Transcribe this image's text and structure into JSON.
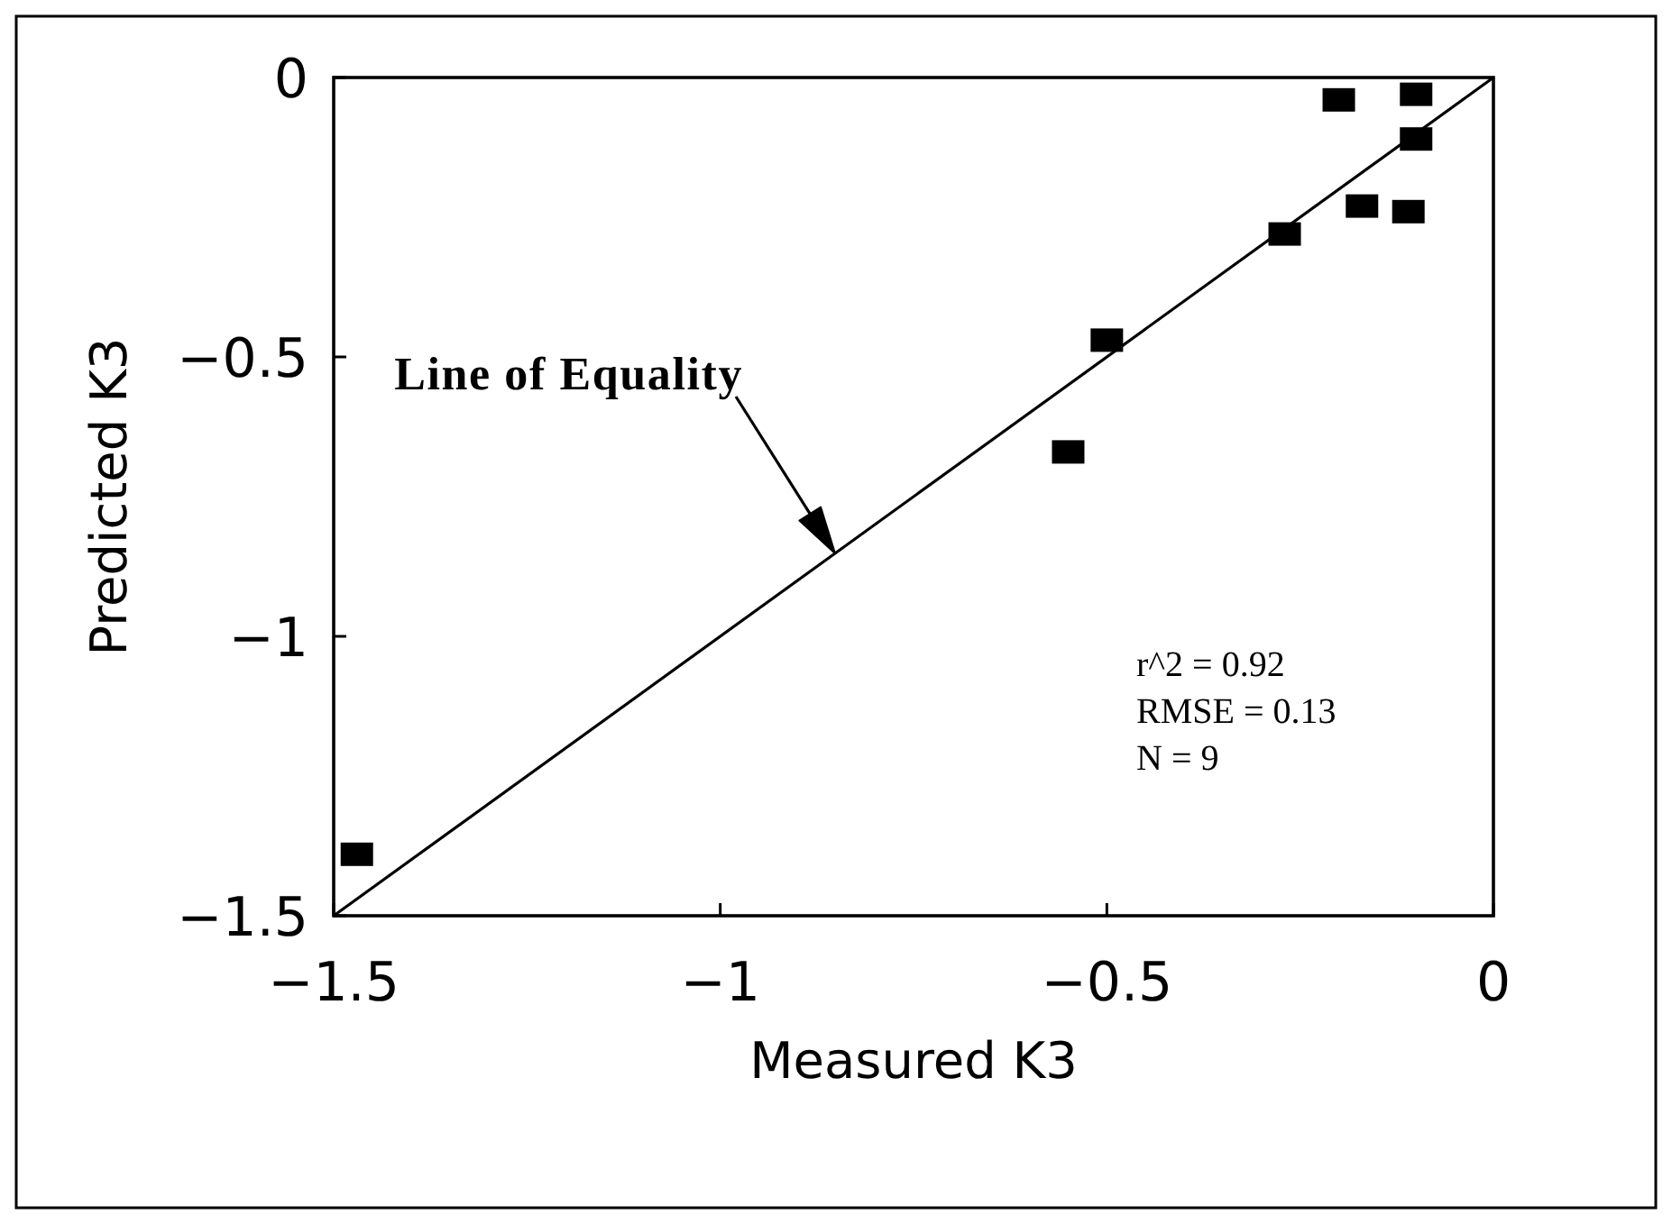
{
  "chart_data": {
    "type": "scatter",
    "xlabel": "Measured K3",
    "ylabel": "Predicted K3",
    "xlim": [
      -1.5,
      0
    ],
    "ylim": [
      -1.5,
      0
    ],
    "xticks": [
      -1.5,
      -1,
      -0.5,
      0
    ],
    "yticks": [
      -1.5,
      -1,
      -0.5,
      0
    ],
    "marker": "square",
    "series": [
      {
        "color": "#000000",
        "x": [
          -1.47,
          -0.55,
          -0.5,
          -0.27,
          -0.2,
          -0.17,
          -0.11,
          -0.1,
          -0.1
        ],
        "values": [
          -1.39,
          -0.67,
          -0.47,
          -0.28,
          -0.04,
          -0.23,
          -0.24,
          -0.03,
          -0.11
        ]
      },
      {
        "type": "line",
        "color": "#000000",
        "marker": "none",
        "line_style": "solid",
        "x": [
          -1.5,
          0
        ],
        "values": [
          -1.5,
          0
        ]
      }
    ],
    "annotations": [
      "Line of Equality",
      "r^2 = 0.92",
      "RMSE = 0.13",
      "N = 9"
    ]
  }
}
